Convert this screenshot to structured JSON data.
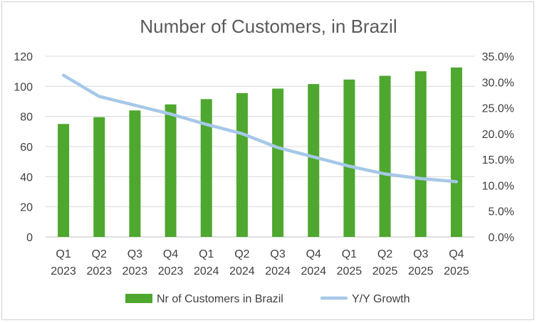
{
  "chart_data": {
    "type": "bar",
    "title": "Number of Customers, in Brazil",
    "categories": [
      [
        "Q1",
        "2023"
      ],
      [
        "Q2",
        "2023"
      ],
      [
        "Q3",
        "2023"
      ],
      [
        "Q4",
        "2023"
      ],
      [
        "Q1",
        "2024"
      ],
      [
        "Q2",
        "2024"
      ],
      [
        "Q3",
        "2024"
      ],
      [
        "Q4",
        "2024"
      ],
      [
        "Q1",
        "2025"
      ],
      [
        "Q2",
        "2025"
      ],
      [
        "Q3",
        "2025"
      ],
      [
        "Q4",
        "2025"
      ]
    ],
    "series": [
      {
        "name": "Nr of Customers in Brazil",
        "type": "bar",
        "axis": "left",
        "color": "#4ea72e",
        "values": [
          75,
          79.5,
          84,
          88,
          91.5,
          95.5,
          98.5,
          101.5,
          104.5,
          107,
          110,
          112.5
        ]
      },
      {
        "name": "Y/Y Growth",
        "type": "line",
        "axis": "right",
        "color": "#a6c8e8",
        "values": [
          0.313,
          0.272,
          0.255,
          0.238,
          0.218,
          0.2,
          0.173,
          0.155,
          0.137,
          0.122,
          0.113,
          0.107
        ]
      }
    ],
    "y_left": {
      "min": 0,
      "max": 120,
      "ticks": [
        "0",
        "20",
        "40",
        "60",
        "80",
        "100",
        "120"
      ]
    },
    "y_right": {
      "min": 0,
      "max": 0.35,
      "ticks": [
        "0.0%",
        "5.0%",
        "10.0%",
        "15.0%",
        "20.0%",
        "25.0%",
        "30.0%",
        "35.0%"
      ]
    },
    "gridlines": true,
    "legend": "bottom"
  }
}
